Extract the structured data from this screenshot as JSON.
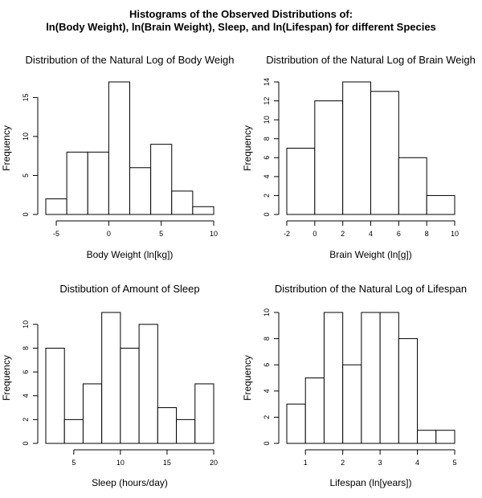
{
  "figure": {
    "title_line1": "Histograms of the Observed Distributions of:",
    "title_line2": "ln(Body Weight), ln(Brain Weight), Sleep, and ln(Lifespan) for different Species"
  },
  "chart_data": [
    {
      "type": "bar",
      "title": "Distribution of the Natural Log of Body Weigh",
      "xlabel": "Body Weight (ln[kg])",
      "ylabel": "Frequency",
      "bin_edges": [
        -6,
        -4,
        -2,
        0,
        2,
        4,
        6,
        8,
        10
      ],
      "values": [
        2,
        8,
        8,
        17,
        6,
        9,
        3,
        1
      ],
      "xlim": [
        -6,
        10
      ],
      "ylim": [
        0,
        17
      ],
      "xticks": [
        -5,
        0,
        5,
        10
      ],
      "yticks": [
        0,
        5,
        10,
        15
      ],
      "grid": false
    },
    {
      "type": "bar",
      "title": "Distribution of the Natural Log of Brain Weigh",
      "xlabel": "Brain Weight (ln[g])",
      "ylabel": "Frequency",
      "bin_edges": [
        -2,
        0,
        2,
        4,
        6,
        8,
        10
      ],
      "values": [
        7,
        12,
        14,
        13,
        6,
        2
      ],
      "xlim": [
        -2,
        10
      ],
      "ylim": [
        0,
        14
      ],
      "xticks": [
        -2,
        0,
        2,
        4,
        6,
        8,
        10
      ],
      "yticks": [
        0,
        2,
        4,
        6,
        8,
        10,
        12,
        14
      ],
      "grid": false
    },
    {
      "type": "bar",
      "title": "Distibution of Amount of Sleep",
      "xlabel": "Sleep (hours/day)",
      "ylabel": "Frequency",
      "bin_edges": [
        2,
        4,
        6,
        8,
        10,
        12,
        14,
        16,
        18,
        20
      ],
      "values": [
        8,
        2,
        5,
        11,
        8,
        10,
        3,
        2,
        5
      ],
      "xlim": [
        2,
        20
      ],
      "ylim": [
        0,
        11
      ],
      "xticks": [
        5,
        10,
        15,
        20
      ],
      "yticks": [
        0,
        2,
        4,
        6,
        8,
        10
      ],
      "grid": false
    },
    {
      "type": "bar",
      "title": "Distribution of the Natural Log of Lifespan",
      "xlabel": "Lifespan (ln[years])",
      "ylabel": "Frequency",
      "bin_edges": [
        0.5,
        1.0,
        1.5,
        2.0,
        2.5,
        3.0,
        3.5,
        4.0,
        4.5,
        5.0
      ],
      "values": [
        3,
        5,
        10,
        6,
        10,
        10,
        8,
        1,
        1
      ],
      "xlim": [
        0.5,
        5.0
      ],
      "ylim": [
        0,
        10
      ],
      "xticks": [
        1,
        2,
        3,
        4,
        5
      ],
      "yticks": [
        0,
        2,
        4,
        6,
        8,
        10
      ],
      "grid": false
    }
  ]
}
